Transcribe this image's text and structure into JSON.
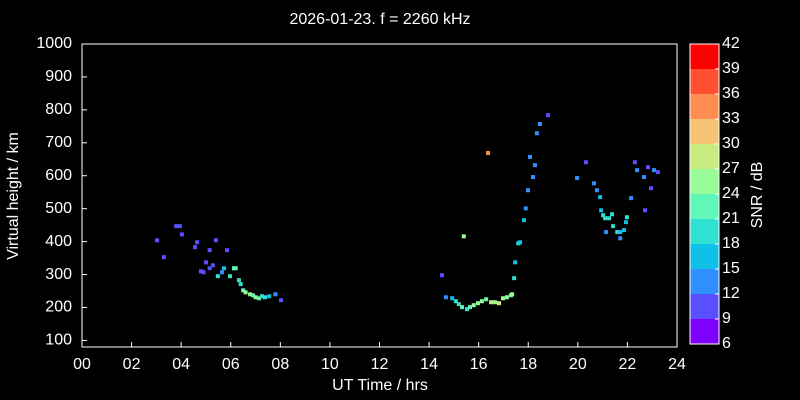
{
  "chart_data": {
    "type": "scatter",
    "title": "2026-01-23. f = 2260 kHz",
    "xlabel": "UT Time / hrs",
    "ylabel": "Virtual height / km",
    "xlim": [
      0,
      24
    ],
    "xticks": [
      {
        "value": 0,
        "label": "00"
      },
      {
        "value": 2,
        "label": "02"
      },
      {
        "value": 4,
        "label": "04"
      },
      {
        "value": 6,
        "label": "06"
      },
      {
        "value": 8,
        "label": "08"
      },
      10,
      12,
      14,
      16,
      18,
      20,
      22,
      24
    ],
    "ylim": [
      80,
      1000
    ],
    "yticks": [
      100,
      200,
      300,
      400,
      500,
      600,
      700,
      800,
      900,
      1000
    ],
    "x": [
      3.03,
      3.3,
      3.8,
      3.95,
      4.03,
      4.56,
      4.64,
      4.8,
      4.9,
      5.0,
      5.15,
      5.15,
      5.28,
      5.4,
      5.48,
      5.65,
      5.73,
      5.85,
      5.97,
      6.13,
      6.2,
      6.33,
      6.4,
      6.5,
      6.6,
      6.78,
      6.9,
      7.0,
      7.14,
      7.26,
      7.38,
      7.55,
      7.8,
      8.03,
      14.52,
      14.68,
      14.93,
      15.08,
      15.2,
      15.33,
      15.4,
      15.53,
      15.65,
      15.8,
      15.97,
      16.13,
      16.3,
      16.38,
      16.5,
      16.66,
      16.82,
      16.98,
      17.14,
      17.3,
      17.35,
      17.43,
      17.47,
      17.6,
      17.67,
      17.83,
      17.9,
      17.99,
      18.07,
      18.19,
      18.27,
      18.35,
      18.47,
      18.8,
      19.97,
      20.33,
      20.65,
      20.77,
      20.9,
      20.94,
      21.02,
      21.1,
      21.14,
      21.26,
      21.38,
      21.42,
      21.59,
      21.71,
      21.71,
      21.86,
      21.94,
      21.98,
      22.15,
      22.3,
      22.39,
      22.67,
      22.71,
      22.83,
      22.95,
      23.07,
      23.23
    ],
    "y": [
      404,
      353,
      447,
      447,
      422,
      383,
      398,
      310,
      307,
      337,
      319,
      374,
      328,
      404,
      295,
      307,
      319,
      374,
      295,
      319,
      319,
      283,
      271,
      252,
      246,
      240,
      237,
      231,
      228,
      234,
      231,
      234,
      240,
      222,
      298,
      231,
      228,
      219,
      210,
      201,
      416,
      195,
      201,
      207,
      213,
      219,
      225,
      669,
      216,
      216,
      213,
      228,
      231,
      237,
      240,
      289,
      337,
      395,
      398,
      465,
      501,
      556,
      657,
      596,
      632,
      729,
      757,
      784,
      593,
      641,
      577,
      556,
      535,
      495,
      480,
      471,
      429,
      471,
      483,
      447,
      429,
      429,
      410,
      435,
      459,
      474,
      532,
      641,
      617,
      596,
      495,
      626,
      562,
      617,
      611
    ],
    "snr": [
      11,
      11,
      11,
      11,
      11,
      11,
      11,
      11,
      11,
      11,
      11,
      11,
      11,
      11,
      20,
      14,
      17,
      11,
      20,
      23,
      23,
      20,
      20,
      23,
      25,
      25,
      23,
      26,
      23,
      20,
      20,
      17,
      14,
      11,
      11,
      14,
      17,
      20,
      20,
      23,
      26,
      20,
      23,
      25,
      25,
      25,
      23,
      34,
      29,
      26,
      28,
      26,
      26,
      23,
      25,
      20,
      17,
      20,
      17,
      17,
      14,
      14,
      14,
      14,
      14,
      14,
      14,
      11,
      14,
      11,
      14,
      14,
      17,
      17,
      20,
      20,
      14,
      20,
      20,
      20,
      20,
      17,
      14,
      17,
      17,
      20,
      14,
      11,
      14,
      14,
      11,
      11,
      11,
      14,
      11
    ],
    "colorbar": {
      "label": "SNR / dB",
      "lim": [
        6,
        42
      ],
      "ticks": [
        6,
        9,
        12,
        15,
        18,
        21,
        24,
        27,
        30,
        33,
        36,
        39,
        42
      ],
      "colors": [
        "#8000ff",
        "#5a50ff",
        "#3090ff",
        "#10c0e8",
        "#30e0d0",
        "#60f8b8",
        "#98fc98",
        "#c8ec80",
        "#f4c474",
        "#ff8c50",
        "#ff5030",
        "#ff0000"
      ]
    },
    "marker_size": 4
  }
}
